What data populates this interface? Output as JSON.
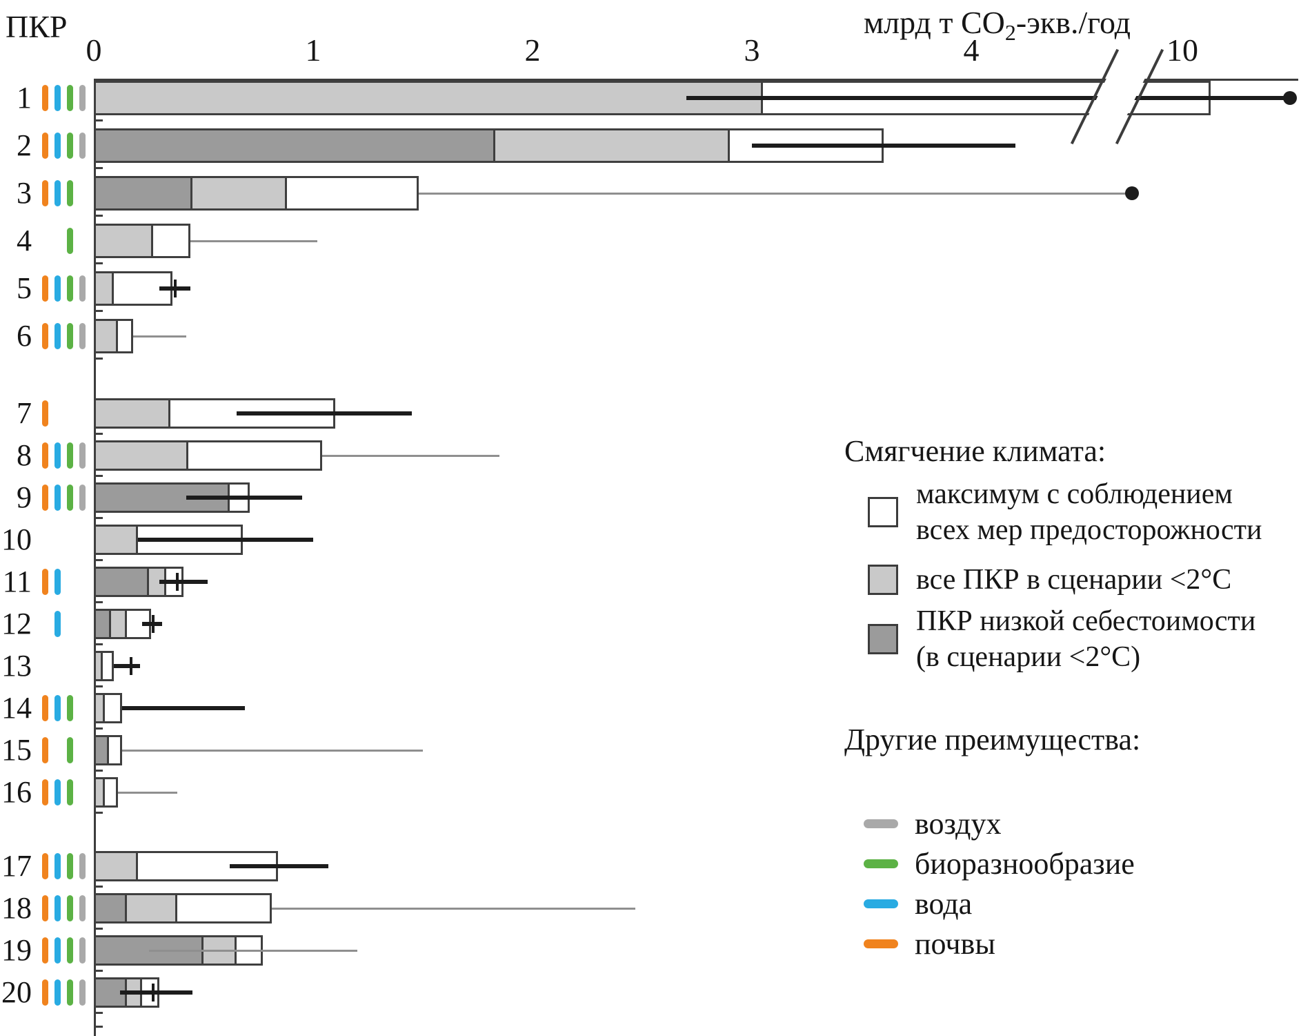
{
  "header": {
    "y_axis_label": "ПКР",
    "x_axis_title_pre": "млрд т CO",
    "x_axis_title_sub": "2",
    "x_axis_title_post": "-экв./год"
  },
  "legend": {
    "mitigation_title": "Смягчение климата:",
    "items": [
      {
        "swatch": "white",
        "label_lines": [
          "максимум с соблюдением",
          "всех мер предосторожности"
        ]
      },
      {
        "swatch": "light",
        "label_lines": [
          "все ПКР в сценарии <2°C"
        ]
      },
      {
        "swatch": "dark",
        "label_lines": [
          "ПКР низкой себестоимости",
          "(в сценарии <2°C)"
        ]
      }
    ],
    "benefits_title": "Другие преимущества:",
    "benefit_items": [
      {
        "color_key": "air",
        "label": "воздух"
      },
      {
        "color_key": "biodiversity",
        "label": "биоразнообразие"
      },
      {
        "color_key": "water",
        "label": "вода"
      },
      {
        "color_key": "soil",
        "label": "почвы"
      }
    ]
  },
  "colors": {
    "air": "#a9a9a9",
    "biodiversity": "#5cb245",
    "water": "#29abe2",
    "soil": "#f0831e",
    "bar_white": "#ffffff",
    "bar_light": "#c9c9c9",
    "bar_dark": "#9b9b9b",
    "bar_border": "#3f3f3f",
    "whisker_thick": "#1c1c1c",
    "whisker_thin": "#8f8f8f"
  },
  "chart_data": {
    "type": "bar",
    "orientation": "horizontal",
    "title": "",
    "xlabel": "млрд т CO2-экв./год",
    "ylabel": "ПКР",
    "x_ticks": [
      0,
      1,
      2,
      3,
      4,
      10
    ],
    "axis_break": {
      "after": 4.5,
      "resume": 9.5
    },
    "series_legend": [
      "максимум с соблюдением всех мер предосторожности",
      "все ПКР в сценарии <2°C",
      "ПКР низкой себестоимости (в сценарии <2°C)"
    ],
    "rows": [
      {
        "label": "1",
        "group": 0,
        "low": 0,
        "ce": 3.05,
        "max": 10.5,
        "whisker": {
          "from": 2.7,
          "to": 11.9,
          "style": "thick"
        },
        "dot": 11.9,
        "benefits": [
          "soil",
          "water",
          "biodiversity",
          "air"
        ]
      },
      {
        "label": "2",
        "group": 0,
        "low": 1.83,
        "ce": 2.9,
        "max": 3.6,
        "whisker": {
          "from": 3.0,
          "to": 4.2,
          "style": "thick"
        },
        "benefits": [
          "soil",
          "water",
          "biodiversity",
          "air"
        ]
      },
      {
        "label": "3",
        "group": 0,
        "low": 0.45,
        "ce": 0.88,
        "max": 1.48,
        "whisker": {
          "from": 1.48,
          "to": 8.0,
          "style": "thin"
        },
        "dot": 8.0,
        "benefits": [
          "soil",
          "water",
          "biodiversity"
        ]
      },
      {
        "label": "4",
        "group": 0,
        "low": 0,
        "ce": 0.27,
        "max": 0.44,
        "whisker": {
          "from": 0.44,
          "to": 1.02,
          "style": "thin"
        },
        "benefits": [
          "biodiversity"
        ]
      },
      {
        "label": "5",
        "group": 0,
        "low": 0,
        "ce": 0.09,
        "max": 0.36,
        "whisker": {
          "from": 0.3,
          "to": 0.44,
          "style": "thick"
        },
        "tick": 0.37,
        "benefits": [
          "soil",
          "water",
          "biodiversity",
          "air"
        ]
      },
      {
        "label": "6",
        "group": 0,
        "low": 0,
        "ce": 0.11,
        "max": 0.18,
        "whisker": {
          "from": 0.18,
          "to": 0.42,
          "style": "thin"
        },
        "benefits": [
          "soil",
          "water",
          "biodiversity",
          "air"
        ]
      },
      {
        "label": "7",
        "group": 1,
        "low": 0,
        "ce": 0.35,
        "max": 1.1,
        "whisker": {
          "from": 0.65,
          "to": 1.45,
          "style": "thick"
        },
        "benefits": [
          "soil"
        ]
      },
      {
        "label": "8",
        "group": 1,
        "low": 0,
        "ce": 0.43,
        "max": 1.04,
        "whisker": {
          "from": 1.04,
          "to": 1.85,
          "style": "thin"
        },
        "benefits": [
          "soil",
          "water",
          "biodiversity",
          "air"
        ]
      },
      {
        "label": "9",
        "group": 1,
        "low": 0.62,
        "ce": 0.62,
        "max": 0.71,
        "whisker": {
          "from": 0.42,
          "to": 0.95,
          "style": "thick"
        },
        "benefits": [
          "soil",
          "water",
          "biodiversity",
          "air"
        ]
      },
      {
        "label": "10",
        "group": 1,
        "low": 0,
        "ce": 0.2,
        "max": 0.68,
        "whisker": {
          "from": 0.2,
          "to": 1.0,
          "style": "thick"
        },
        "benefits": []
      },
      {
        "label": "11",
        "group": 1,
        "low": 0.25,
        "ce": 0.33,
        "max": 0.41,
        "whisker": {
          "from": 0.3,
          "to": 0.52,
          "style": "thick"
        },
        "tick": 0.38,
        "benefits": [
          "soil",
          "water"
        ]
      },
      {
        "label": "12",
        "group": 1,
        "low": 0.08,
        "ce": 0.15,
        "max": 0.26,
        "whisker": {
          "from": 0.22,
          "to": 0.31,
          "style": "thick"
        },
        "tick": 0.27,
        "benefits": [
          "water"
        ]
      },
      {
        "label": "13",
        "group": 1,
        "low": 0,
        "ce": 0.04,
        "max": 0.09,
        "whisker": {
          "from": 0.09,
          "to": 0.21,
          "style": "thick"
        },
        "tick": 0.17,
        "benefits": []
      },
      {
        "label": "14",
        "group": 1,
        "low": 0,
        "ce": 0.05,
        "max": 0.13,
        "whisker": {
          "from": 0.13,
          "to": 0.69,
          "style": "thick"
        },
        "benefits": [
          "soil",
          "water",
          "biodiversity"
        ]
      },
      {
        "label": "15",
        "group": 1,
        "low": 0.07,
        "ce": 0.07,
        "max": 0.13,
        "whisker": {
          "from": 0.13,
          "to": 1.5,
          "style": "thin"
        },
        "benefits": [
          "soil",
          "biodiversity"
        ]
      },
      {
        "label": "16",
        "group": 1,
        "low": 0,
        "ce": 0.05,
        "max": 0.11,
        "whisker": {
          "from": 0.11,
          "to": 0.38,
          "style": "thin"
        },
        "benefits": [
          "soil",
          "water",
          "biodiversity"
        ]
      },
      {
        "label": "17",
        "group": 2,
        "low": 0,
        "ce": 0.2,
        "max": 0.84,
        "whisker": {
          "from": 0.62,
          "to": 1.07,
          "style": "thick"
        },
        "benefits": [
          "soil",
          "water",
          "biodiversity",
          "air"
        ]
      },
      {
        "label": "18",
        "group": 2,
        "low": 0.15,
        "ce": 0.38,
        "max": 0.81,
        "whisker": {
          "from": 0.81,
          "to": 2.47,
          "style": "thin"
        },
        "benefits": [
          "soil",
          "water",
          "biodiversity",
          "air"
        ]
      },
      {
        "label": "19",
        "group": 2,
        "low": 0.5,
        "ce": 0.65,
        "max": 0.77,
        "whisker": {
          "from": 0.25,
          "to": 1.2,
          "style": "thin"
        },
        "benefits": [
          "soil",
          "water",
          "biodiversity",
          "air"
        ]
      },
      {
        "label": "20",
        "group": 2,
        "low": 0.15,
        "ce": 0.22,
        "max": 0.3,
        "whisker": {
          "from": 0.12,
          "to": 0.45,
          "style": "thick"
        },
        "tick": 0.27,
        "benefits": [
          "soil",
          "water",
          "biodiversity",
          "air"
        ]
      }
    ]
  }
}
